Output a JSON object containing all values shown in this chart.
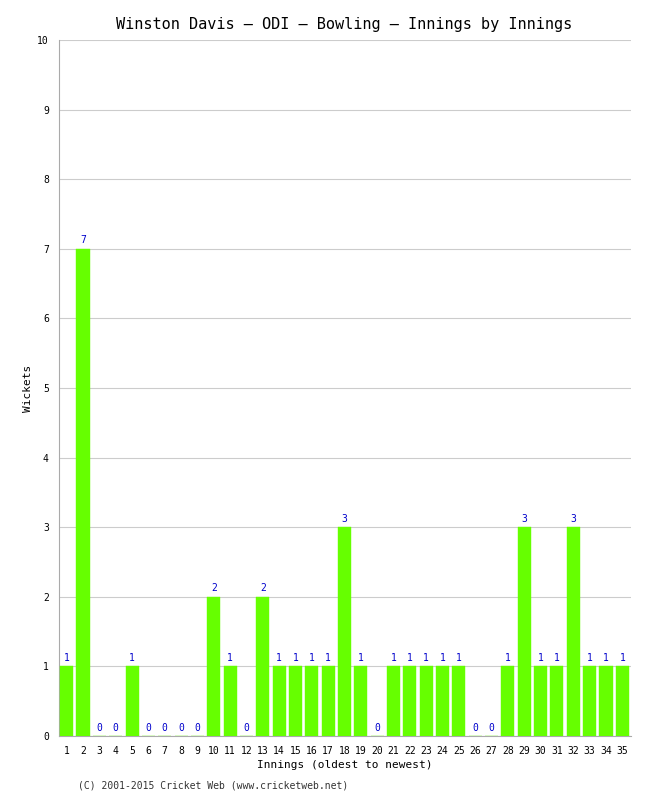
{
  "title": "Winston Davis – ODI – Bowling – Innings by Innings",
  "xlabel": "Innings (oldest to newest)",
  "ylabel": "Wickets",
  "footer": "(C) 2001-2015 Cricket Web (www.cricketweb.net)",
  "xlim": [
    0.5,
    35.5
  ],
  "ylim": [
    0,
    10
  ],
  "yticks": [
    0,
    1,
    2,
    3,
    4,
    5,
    6,
    7,
    8,
    9,
    10
  ],
  "bar_color": "#66ff00",
  "bar_edge_color": "#66ff00",
  "label_color": "#0000cc",
  "categories": [
    1,
    2,
    3,
    4,
    5,
    6,
    7,
    8,
    9,
    10,
    11,
    12,
    13,
    14,
    15,
    16,
    17,
    18,
    19,
    20,
    21,
    22,
    23,
    24,
    25,
    26,
    27,
    28,
    29,
    30,
    31,
    32,
    33,
    34,
    35
  ],
  "values": [
    1,
    7,
    0,
    0,
    1,
    0,
    0,
    0,
    0,
    2,
    1,
    0,
    2,
    1,
    1,
    1,
    1,
    3,
    1,
    0,
    1,
    1,
    1,
    1,
    1,
    0,
    0,
    1,
    3,
    1,
    1,
    3,
    1,
    1,
    1
  ],
  "background_color": "#ffffff",
  "grid_color": "#cccccc",
  "title_fontsize": 11,
  "label_fontsize": 8,
  "tick_fontsize": 7,
  "bar_label_fontsize": 7,
  "footer_fontsize": 7
}
